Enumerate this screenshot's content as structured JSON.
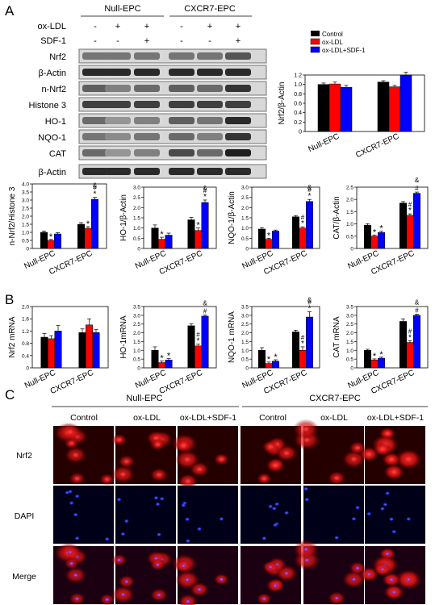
{
  "figure": {
    "panels": {
      "A": "A",
      "B": "B",
      "C": "C"
    },
    "wb": {
      "group_labels": [
        "Null-EPC",
        "CXCR7-EPC"
      ],
      "treatment_rows": [
        {
          "label": "ox-LDL",
          "signs": [
            "-",
            "+",
            "+",
            "-",
            "+",
            "+"
          ]
        },
        {
          "label": "SDF-1",
          "signs": [
            "-",
            "-",
            "+",
            "-",
            "-",
            "+"
          ]
        }
      ],
      "blot_labels": [
        "Nrf2",
        "β-Actin",
        "n-Nrf2",
        "Histone 3",
        "HO-1",
        "NQO-1",
        "CAT",
        "β-Actin"
      ]
    },
    "legend": [
      {
        "label": "Control",
        "color": "#000000"
      },
      {
        "label": "ox-LDL",
        "color": "#ff0000"
      },
      {
        "label": "ox-LDL+SDF-1",
        "color": "#0000ff"
      }
    ],
    "if_panel": {
      "group_labels": [
        "Null-EPC",
        "CXCR7-EPC"
      ],
      "column_labels": [
        "Control",
        "ox-LDL",
        "ox-LDL+SDF-1",
        "Control",
        "ox-LDL",
        "ox-LDL+SDF-1"
      ],
      "row_labels": [
        "Nrf2",
        "DAPI",
        "Merge"
      ]
    }
  },
  "chart_data": [
    {
      "id": "nrf2",
      "type": "bar",
      "ylabel": "Nrf2/β-Actin",
      "ylim": [
        0,
        1.2
      ],
      "yticks": [
        "0",
        "0.2",
        "0.4",
        "0.6",
        "0.8",
        "1.0",
        "1.2"
      ],
      "categories": [
        "Null-EPC",
        "CXCR7-EPC"
      ],
      "series": [
        {
          "name": "Control",
          "values": [
            1.0,
            1.05
          ],
          "errors": [
            0.03,
            0.03
          ],
          "marks": [
            "",
            ""
          ]
        },
        {
          "name": "ox-LDL",
          "values": [
            1.01,
            0.95
          ],
          "errors": [
            0.04,
            0.03
          ],
          "marks": [
            "",
            ""
          ]
        },
        {
          "name": "ox-LDL+SDF-1",
          "values": [
            0.94,
            1.2
          ],
          "errors": [
            0.04,
            0.06
          ],
          "marks": [
            "",
            ""
          ]
        }
      ]
    },
    {
      "id": "nnrf2",
      "type": "bar",
      "ylabel": "n-Nrf2/Histone 3",
      "ylim": [
        0,
        4.0
      ],
      "yticks": [
        "0",
        "0.5",
        "1.0",
        "1.5",
        "2.0",
        "2.5",
        "3.0",
        "3.5",
        "4.0"
      ],
      "categories": [
        "Null-EPC",
        "CXCR7-EPC"
      ],
      "series": [
        {
          "name": "Control",
          "values": [
            1.0,
            1.5
          ],
          "errors": [
            0.08,
            0.1
          ],
          "marks": [
            "",
            ""
          ]
        },
        {
          "name": "ox-LDL",
          "values": [
            0.5,
            1.25
          ],
          "errors": [
            0.06,
            0.1
          ],
          "marks": [
            "*",
            "*"
          ]
        },
        {
          "name": "ox-LDL+SDF-1",
          "values": [
            0.9,
            3.05
          ],
          "errors": [
            0.08,
            0.12
          ],
          "marks": [
            "",
            "*#&"
          ]
        }
      ]
    },
    {
      "id": "ho1",
      "type": "bar",
      "ylabel": "HO-1/β-Actin",
      "ylim": [
        0,
        3.0
      ],
      "yticks": [
        "0",
        "0.5",
        "1.0",
        "1.5",
        "2.0",
        "2.5",
        "3.0"
      ],
      "categories": [
        "Null-EPC",
        "CXCR7-EPC"
      ],
      "series": [
        {
          "name": "Control",
          "values": [
            1.0,
            1.4
          ],
          "errors": [
            0.15,
            0.12
          ],
          "marks": [
            "",
            ""
          ]
        },
        {
          "name": "ox-LDL",
          "values": [
            0.45,
            0.88
          ],
          "errors": [
            0.1,
            0.12
          ],
          "marks": [
            "*",
            "*"
          ]
        },
        {
          "name": "ox-LDL+SDF-1",
          "values": [
            0.65,
            2.25
          ],
          "errors": [
            0.1,
            0.12
          ],
          "marks": [
            "",
            "*#&"
          ]
        }
      ]
    },
    {
      "id": "nqo1",
      "type": "bar",
      "ylabel": "NQO-1/β-Actin",
      "ylim": [
        0,
        3.0
      ],
      "yticks": [
        "0",
        "0.5",
        "1.0",
        "1.5",
        "2.0",
        "2.5",
        "3.0"
      ],
      "categories": [
        "Null-EPC",
        "CXCR7-EPC"
      ],
      "series": [
        {
          "name": "Control",
          "values": [
            0.95,
            1.55
          ],
          "errors": [
            0.07,
            0.06
          ],
          "marks": [
            "",
            ""
          ]
        },
        {
          "name": "ox-LDL",
          "values": [
            0.45,
            1.0
          ],
          "errors": [
            0.05,
            0.06
          ],
          "marks": [
            "*",
            "*#"
          ]
        },
        {
          "name": "ox-LDL+SDF-1",
          "values": [
            0.85,
            2.3
          ],
          "errors": [
            0.05,
            0.1
          ],
          "marks": [
            "",
            "*#&"
          ]
        }
      ]
    },
    {
      "id": "cat",
      "type": "bar",
      "ylabel": "CAT/β-Actin",
      "ylim": [
        0,
        2.5
      ],
      "yticks": [
        "0",
        "0.5",
        "1.0",
        "1.5",
        "2.0",
        "2.5"
      ],
      "categories": [
        "Null-EPC",
        "CXCR7-EPC"
      ],
      "series": [
        {
          "name": "Control",
          "values": [
            0.95,
            1.85
          ],
          "errors": [
            0.06,
            0.06
          ],
          "marks": [
            "",
            ""
          ]
        },
        {
          "name": "ox-LDL",
          "values": [
            0.5,
            1.35
          ],
          "errors": [
            0.05,
            0.06
          ],
          "marks": [
            "*",
            "*#"
          ]
        },
        {
          "name": "ox-LDL+SDF-1",
          "values": [
            0.65,
            2.25
          ],
          "errors": [
            0.05,
            0.05
          ],
          "marks": [
            "*",
            "#&"
          ]
        }
      ]
    },
    {
      "id": "nrf2mrna",
      "type": "bar",
      "ylabel": "Nrf2 mRNA",
      "ylim": [
        0,
        2.0
      ],
      "yticks": [
        "0",
        "0.4",
        "0.8",
        "1.2",
        "1.6",
        "2.0"
      ],
      "categories": [
        "Null-EPC",
        "CXCR7-EPC"
      ],
      "series": [
        {
          "name": "Control",
          "values": [
            1.0,
            1.15
          ],
          "errors": [
            0.12,
            0.12
          ],
          "marks": [
            "",
            ""
          ]
        },
        {
          "name": "ox-LDL",
          "values": [
            0.95,
            1.4
          ],
          "errors": [
            0.1,
            0.2
          ],
          "marks": [
            "",
            ""
          ]
        },
        {
          "name": "ox-LDL+SDF-1",
          "values": [
            1.2,
            1.15
          ],
          "errors": [
            0.18,
            0.1
          ],
          "marks": [
            "",
            ""
          ]
        }
      ]
    },
    {
      "id": "ho1mrna",
      "type": "bar",
      "ylabel": "HO-1mRNA",
      "ylim": [
        0,
        3.5
      ],
      "yticks": [
        "0",
        "0.5",
        "1.0",
        "1.5",
        "2.0",
        "2.5",
        "3.0",
        "3.5"
      ],
      "categories": [
        "Null-EPC",
        "CXCR7-EPC"
      ],
      "series": [
        {
          "name": "Control",
          "values": [
            1.0,
            2.4
          ],
          "errors": [
            0.2,
            0.12
          ],
          "marks": [
            "",
            ""
          ]
        },
        {
          "name": "ox-LDL",
          "values": [
            0.3,
            1.25
          ],
          "errors": [
            0.1,
            0.1
          ],
          "marks": [
            "*",
            "*#"
          ]
        },
        {
          "name": "ox-LDL+SDF-1",
          "values": [
            0.45,
            2.95
          ],
          "errors": [
            0.08,
            0.06
          ],
          "marks": [
            "*",
            "#&"
          ]
        }
      ]
    },
    {
      "id": "nqo1mrna",
      "type": "bar",
      "ylabel": "NQO-1 mRNA",
      "ylim": [
        0,
        3.5
      ],
      "yticks": [
        "0",
        "0.5",
        "1.0",
        "1.5",
        "2.0",
        "2.5",
        "3.0",
        "3.5"
      ],
      "categories": [
        "Null-EPC",
        "CXCR7-EPC"
      ],
      "series": [
        {
          "name": "Control",
          "values": [
            1.0,
            2.05
          ],
          "errors": [
            0.15,
            0.1
          ],
          "marks": [
            "",
            ""
          ]
        },
        {
          "name": "ox-LDL",
          "values": [
            0.25,
            1.0
          ],
          "errors": [
            0.08,
            0.2
          ],
          "marks": [
            "*",
            "*#"
          ]
        },
        {
          "name": "ox-LDL+SDF-1",
          "values": [
            0.38,
            2.9
          ],
          "errors": [
            0.08,
            0.3
          ],
          "marks": [
            "*",
            "*#&"
          ]
        }
      ]
    },
    {
      "id": "catmrna",
      "type": "bar",
      "ylabel": "CAT mRNA",
      "ylim": [
        0,
        3.5
      ],
      "yticks": [
        "0",
        "0.5",
        "1.0",
        "1.5",
        "2.0",
        "2.5",
        "3.0",
        "3.5"
      ],
      "categories": [
        "Null-EPC",
        "CXCR7-EPC"
      ],
      "series": [
        {
          "name": "Control",
          "values": [
            1.0,
            2.65
          ],
          "errors": [
            0.06,
            0.15
          ],
          "marks": [
            "",
            ""
          ]
        },
        {
          "name": "ox-LDL",
          "values": [
            0.45,
            1.45
          ],
          "errors": [
            0.06,
            0.1
          ],
          "marks": [
            "*",
            "*#"
          ]
        },
        {
          "name": "ox-LDL+SDF-1",
          "values": [
            0.55,
            3.0
          ],
          "errors": [
            0.06,
            0.06
          ],
          "marks": [
            "*",
            "#&"
          ]
        }
      ]
    }
  ]
}
